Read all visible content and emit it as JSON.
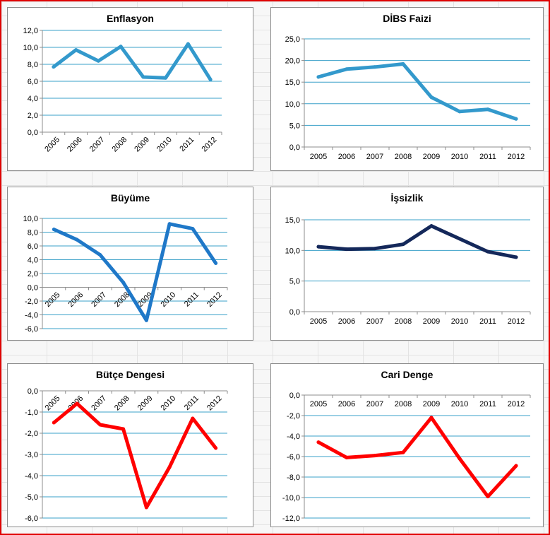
{
  "colors": {
    "frame_border": "#e00000",
    "gridline": "#3aa0c8",
    "axis": "#8c8c8c"
  },
  "chart_data": [
    {
      "type": "line",
      "title": "Enflasyon",
      "categories": [
        "2005",
        "2006",
        "2007",
        "2008",
        "2009",
        "2010",
        "2011",
        "2012"
      ],
      "values": [
        7.7,
        9.7,
        8.4,
        10.1,
        6.5,
        6.4,
        10.4,
        6.2
      ],
      "ylim": [
        0,
        12
      ],
      "ytick_step": 2,
      "ytick_labels": [
        "0,0",
        "2,0",
        "4,0",
        "6,0",
        "8,0",
        "10,0",
        "12,0"
      ],
      "xlabels_rotated": true,
      "line_color": "#3399cc",
      "grid": true
    },
    {
      "type": "line",
      "title": "DİBS Faizi",
      "categories": [
        "2005",
        "2006",
        "2007",
        "2008",
        "2009",
        "2010",
        "2011",
        "2012"
      ],
      "values": [
        16.2,
        18.0,
        18.5,
        19.2,
        11.5,
        8.2,
        8.7,
        6.5
      ],
      "ylim": [
        0,
        25
      ],
      "ytick_step": 5,
      "ytick_labels": [
        "0,0",
        "5,0",
        "10,0",
        "15,0",
        "20,0",
        "25,0"
      ],
      "xlabels_rotated": false,
      "line_color": "#3399cc",
      "grid": true
    },
    {
      "type": "line",
      "title": "Büyüme",
      "categories": [
        "2005",
        "2006",
        "2007",
        "2008",
        "2009",
        "2010",
        "2011",
        "2012"
      ],
      "values": [
        8.4,
        6.9,
        4.7,
        0.7,
        -4.8,
        9.2,
        8.5,
        3.5
      ],
      "ylim": [
        -6,
        10
      ],
      "ytick_step": 2,
      "ytick_labels": [
        "-6,0",
        "-4,0",
        "-2,0",
        "0,0",
        "2,0",
        "4,0",
        "6,0",
        "8,0",
        "10,0"
      ],
      "xlabels_rotated": true,
      "line_color": "#1f78c8",
      "grid": true
    },
    {
      "type": "line",
      "title": "İşsizlik",
      "categories": [
        "2005",
        "2006",
        "2007",
        "2008",
        "2009",
        "2010",
        "2011",
        "2012"
      ],
      "values": [
        10.6,
        10.2,
        10.3,
        11.0,
        14.0,
        11.9,
        9.8,
        8.9
      ],
      "ylim": [
        0,
        15
      ],
      "ytick_step": 5,
      "ytick_labels": [
        "0,0",
        "5,0",
        "10,0",
        "15,0"
      ],
      "xlabels_rotated": false,
      "line_color": "#14285a",
      "grid": true
    },
    {
      "type": "line",
      "title": "Bütçe Dengesi",
      "categories": [
        "2005",
        "2006",
        "2007",
        "2008",
        "2009",
        "2010",
        "2011",
        "2012"
      ],
      "values": [
        -1.5,
        -0.6,
        -1.6,
        -1.8,
        -5.5,
        -3.6,
        -1.3,
        -2.7
      ],
      "ylim": [
        -6,
        0
      ],
      "ytick_step": 1,
      "ytick_labels": [
        "-6,0",
        "-5,0",
        "-4,0",
        "-3,0",
        "-2,0",
        "-1,0",
        "0,0"
      ],
      "xlabels_rotated": true,
      "line_color": "#ff0000",
      "grid": true
    },
    {
      "type": "line",
      "title": "Cari Denge",
      "categories": [
        "2005",
        "2006",
        "2007",
        "2008",
        "2009",
        "2010",
        "2011",
        "2012"
      ],
      "values": [
        -4.6,
        -6.1,
        -5.9,
        -5.6,
        -2.2,
        -6.2,
        -9.9,
        -6.9
      ],
      "ylim": [
        -12,
        0
      ],
      "ytick_step": 2,
      "ytick_labels": [
        "-12,0",
        "-10,0",
        "-8,0",
        "-6,0",
        "-4,0",
        "-2,0",
        "0,0"
      ],
      "xlabels_rotated": false,
      "line_color": "#ff0000",
      "grid": true
    }
  ]
}
